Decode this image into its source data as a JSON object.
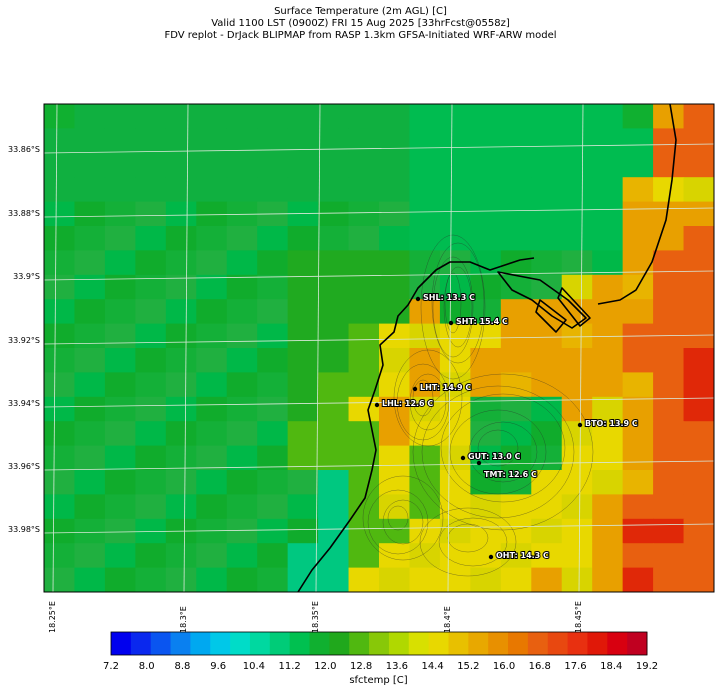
{
  "title": {
    "line1": "Surface Temperature (2m AGL) [C]",
    "line2": "Valid 1100 LST (0900Z) FRI 15 Aug 2025 [33hrFcst@0558z]",
    "line3": "FDV replot - DrJack BLIPMAP from RASP 1.3km GFSA-Initiated WRF-ARW model"
  },
  "lat_labels": [
    "33.86°S",
    "33.88°S",
    "33.9°S",
    "33.92°S",
    "33.94°S",
    "33.96°S",
    "33.98°S"
  ],
  "lon_labels": [
    "18.25°E",
    "18.3°E",
    "18.35°E",
    "18.4°E",
    "18.45°E"
  ],
  "stations": [
    {
      "code": "SHL",
      "label": "SHL: 13.3 C",
      "value": 13.3
    },
    {
      "code": "SHT",
      "label": "SHT: 15.4 C",
      "value": 15.4
    },
    {
      "code": "LHT",
      "label": "LHT: 14.9 C",
      "value": 14.9
    },
    {
      "code": "LHL",
      "label": "LHL: 12.6 C",
      "value": 12.6
    },
    {
      "code": "BTO",
      "label": "BTO: 13.9 C",
      "value": 13.9
    },
    {
      "code": "GUT",
      "label": "GUT: 13.0 C",
      "value": 13.0
    },
    {
      "code": "TMT",
      "label": "TMT: 12.6 C",
      "value": 12.6
    },
    {
      "code": "OHT",
      "label": "OHT: 14.3 C",
      "value": 14.3
    }
  ],
  "colorbar": {
    "title": "sfctemp [C]",
    "tick_labels": [
      "7.2",
      "8.0",
      "8.8",
      "9.6",
      "10.4",
      "11.2",
      "12.0",
      "12.8",
      "13.6",
      "14.4",
      "15.2",
      "16.0",
      "16.8",
      "17.6",
      "18.4",
      "19.2"
    ],
    "colors": [
      "#0000ee",
      "#0a28ee",
      "#0a55f0",
      "#0a80f0",
      "#00a8f0",
      "#00c8e8",
      "#00dcc8",
      "#00d8a0",
      "#00cc78",
      "#00c050",
      "#10b030",
      "#20a81c",
      "#50b810",
      "#88c808",
      "#b0d800",
      "#d8e000",
      "#e8d800",
      "#e8c000",
      "#e8a800",
      "#e89000",
      "#e87800",
      "#e86010",
      "#e84810",
      "#e83010",
      "#e01808",
      "#d80010",
      "#c00020"
    ]
  }
}
